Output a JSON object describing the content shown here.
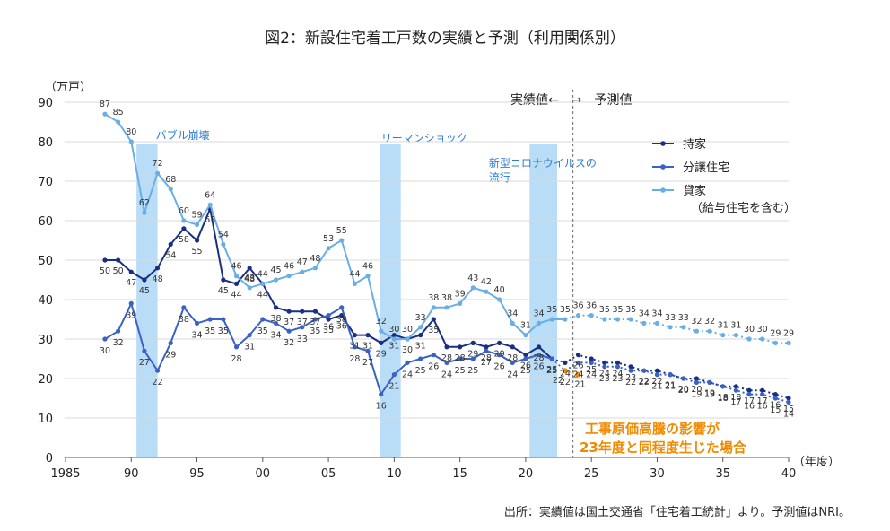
{
  "chart_data": {
    "type": "line",
    "title": "図2：新設住宅着工戸数の実績と予測（利用関係別）",
    "ylabel": "（万戸）",
    "xlabel": "（年度）",
    "ylim": [
      0,
      90
    ],
    "xlim": [
      1985,
      2040
    ],
    "yticks": [
      0,
      10,
      20,
      30,
      40,
      50,
      60,
      70,
      80,
      90
    ],
    "xticks": [
      {
        "v": 1985,
        "label": "1985"
      },
      {
        "v": 1990,
        "label": "90"
      },
      {
        "v": 1995,
        "label": "95"
      },
      {
        "v": 2000,
        "label": "00"
      },
      {
        "v": 2005,
        "label": "05"
      },
      {
        "v": 2010,
        "label": "10"
      },
      {
        "v": 2015,
        "label": "15"
      },
      {
        "v": 2020,
        "label": "20"
      },
      {
        "v": 2025,
        "label": "25"
      },
      {
        "v": 2030,
        "label": "30"
      },
      {
        "v": 2035,
        "label": "35"
      },
      {
        "v": 2040,
        "label": "40"
      }
    ],
    "grid": "horizontal",
    "legend_position": "right",
    "actual_forecast_header": "実績値←　→　予測値",
    "bands": [
      {
        "label": "バブル崩壊",
        "from": 1990.4,
        "to": 1992.0
      },
      {
        "label": "リーマンショック",
        "from": 2008.9,
        "to": 2010.5
      },
      {
        "label": "新型コロナウイルスの流行",
        "from": 2020.3,
        "to": 2022.4
      }
    ],
    "series": [
      {
        "name": "持家",
        "color": "#1a2f80",
        "actual": {
          "x": [
            1988,
            1989,
            1990,
            1991,
            1992,
            1993,
            1994,
            1995,
            1996,
            1997,
            1998,
            1999,
            2000,
            2001,
            2002,
            2003,
            2004,
            2005,
            2006,
            2007,
            2008,
            2009,
            2010,
            2011,
            2012,
            2013,
            2014,
            2015,
            2016,
            2017,
            2018,
            2019,
            2020,
            2021,
            2022
          ],
          "y": [
            50,
            50,
            47,
            45,
            48,
            54,
            58,
            55,
            63,
            45,
            44,
            48,
            44,
            38,
            37,
            37,
            37,
            35,
            36,
            31,
            31,
            29,
            31,
            30,
            31,
            35,
            28,
            28,
            29,
            28,
            29,
            28,
            26,
            28,
            25
          ]
        },
        "forecast": {
          "x": [
            2023,
            2024,
            2025,
            2026,
            2027,
            2028,
            2029,
            2030,
            2031,
            2032,
            2033,
            2034,
            2035,
            2036,
            2037,
            2038,
            2039,
            2040
          ],
          "y": [
            24,
            26,
            25,
            24,
            24,
            23,
            22,
            22,
            21,
            20,
            20,
            19,
            18,
            18,
            17,
            17,
            16,
            15
          ]
        }
      },
      {
        "name": "分譲住宅",
        "color": "#3a62c4",
        "actual": {
          "x": [
            1988,
            1989,
            1990,
            1991,
            1992,
            1993,
            1994,
            1995,
            1996,
            1997,
            1998,
            1999,
            2000,
            2001,
            2002,
            2003,
            2004,
            2005,
            2006,
            2007,
            2008,
            2009,
            2010,
            2011,
            2012,
            2013,
            2014,
            2015,
            2016,
            2017,
            2018,
            2019,
            2020,
            2021,
            2022
          ],
          "y": [
            30,
            32,
            39,
            27,
            22,
            29,
            38,
            34,
            35,
            35,
            28,
            31,
            35,
            34,
            32,
            33,
            35,
            36,
            38,
            28,
            27,
            16,
            21,
            24,
            25,
            26,
            24,
            25,
            25,
            27,
            26,
            24,
            25,
            26,
            25
          ]
        },
        "forecast": {
          "x": [
            2023,
            2024,
            2025,
            2026,
            2027,
            2028,
            2029,
            2030,
            2031,
            2032,
            2033,
            2034,
            2035,
            2036,
            2037,
            2038,
            2039,
            2040
          ],
          "y": [
            22,
            24,
            24,
            23,
            23,
            22,
            22,
            21,
            21,
            20,
            19,
            19,
            18,
            17,
            16,
            16,
            15,
            14
          ]
        }
      },
      {
        "name": "貸家",
        "name_sub": "（給与住宅を含む）",
        "color": "#6aaee6",
        "actual": {
          "x": [
            1988,
            1989,
            1990,
            1991,
            1992,
            1993,
            1994,
            1995,
            1996,
            1997,
            1998,
            1999,
            2000,
            2001,
            2002,
            2003,
            2004,
            2005,
            2006,
            2007,
            2008,
            2009,
            2010,
            2011,
            2012,
            2013,
            2014,
            2015,
            2016,
            2017,
            2018,
            2019,
            2020,
            2021,
            2022,
            2023
          ],
          "y": [
            87,
            85,
            80,
            62,
            72,
            68,
            60,
            59,
            64,
            54,
            46,
            43,
            44,
            45,
            46,
            47,
            48,
            53,
            55,
            44,
            46,
            32,
            30,
            30,
            33,
            38,
            38,
            39,
            43,
            42,
            40,
            34,
            31,
            34,
            35,
            35
          ]
        },
        "forecast": {
          "x": [
            2024,
            2025,
            2026,
            2027,
            2028,
            2029,
            2030,
            2031,
            2032,
            2033,
            2034,
            2035,
            2036,
            2037,
            2038,
            2039,
            2040
          ],
          "y": [
            36,
            36,
            35,
            35,
            35,
            34,
            34,
            33,
            33,
            32,
            32,
            31,
            31,
            30,
            30,
            29,
            29
          ]
        }
      }
    ],
    "scenario": {
      "label_line1": "工事原価高騰の影響が",
      "label_line2": "23年度と同程度生じた場合",
      "color": "#f08a00",
      "x": [
        2023,
        2024
      ],
      "y": [
        22,
        21
      ]
    },
    "source": "出所：実績値は国土交通省「住宅着工統計」より。予測値はNRI。"
  }
}
